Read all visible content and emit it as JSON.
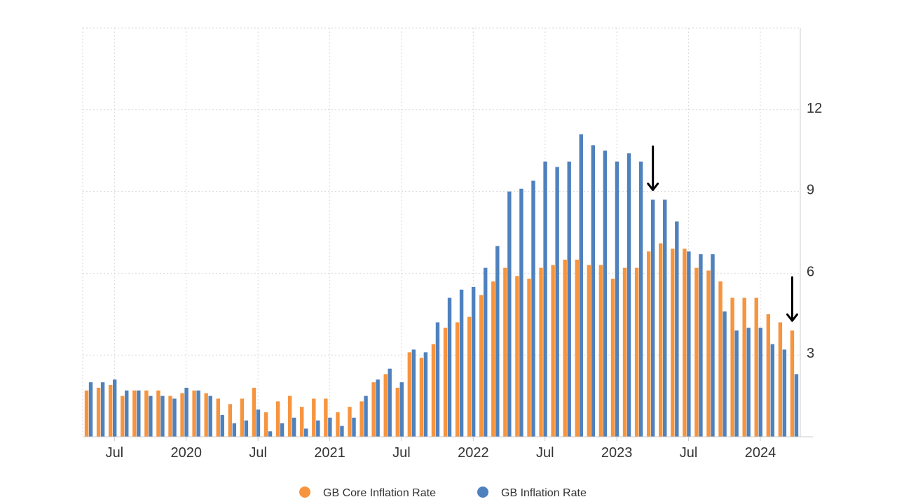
{
  "chart_data": {
    "type": "bar",
    "series": [
      {
        "name": "GB Core Inflation Rate",
        "color": "#F7943E",
        "values": [
          1.7,
          1.8,
          1.9,
          1.5,
          1.7,
          1.7,
          1.7,
          1.5,
          1.6,
          1.7,
          1.6,
          1.4,
          1.2,
          1.4,
          1.8,
          0.9,
          1.3,
          1.5,
          1.1,
          1.4,
          1.4,
          0.9,
          1.1,
          1.3,
          2.0,
          2.3,
          1.8,
          3.1,
          2.9,
          3.4,
          4.0,
          4.2,
          4.4,
          5.2,
          5.7,
          6.2,
          5.9,
          5.8,
          6.2,
          6.3,
          6.5,
          6.5,
          6.3,
          6.3,
          5.8,
          6.2,
          6.2,
          6.8,
          7.1,
          6.9,
          6.9,
          6.2,
          6.1,
          5.7,
          5.1,
          5.1,
          5.1,
          4.5,
          4.2,
          3.9
        ]
      },
      {
        "name": "GB Inflation Rate",
        "color": "#4F81BD",
        "values": [
          2.0,
          2.0,
          2.1,
          1.7,
          1.7,
          1.5,
          1.5,
          1.4,
          1.8,
          1.7,
          1.5,
          0.8,
          0.5,
          0.6,
          1.0,
          0.2,
          0.5,
          0.7,
          0.3,
          0.6,
          0.7,
          0.4,
          0.7,
          1.5,
          2.1,
          2.5,
          2.0,
          3.2,
          3.1,
          4.2,
          5.1,
          5.4,
          5.5,
          6.2,
          7.0,
          9.0,
          9.1,
          9.4,
          10.1,
          9.9,
          10.1,
          11.1,
          10.7,
          10.5,
          10.1,
          10.4,
          10.1,
          8.7,
          8.7,
          7.9,
          6.8,
          6.7,
          6.7,
          4.6,
          3.9,
          4.0,
          4.0,
          3.4,
          3.2,
          2.3
        ]
      }
    ],
    "x_tick_labels": [
      "Jul",
      "2020",
      "Jul",
      "2021",
      "Jul",
      "2022",
      "Jul",
      "2023",
      "Jul",
      "2024"
    ],
    "y_tick_labels": [
      "3",
      "6",
      "9",
      "12"
    ],
    "ylim": [
      0,
      15
    ],
    "grid": true,
    "legend_position": "bottom-center",
    "annotations": [
      {
        "type": "down-arrow",
        "series": "GB Inflation Rate",
        "index": 47
      },
      {
        "type": "down-arrow",
        "series": "GB Core Inflation Rate",
        "index": 59
      }
    ]
  }
}
